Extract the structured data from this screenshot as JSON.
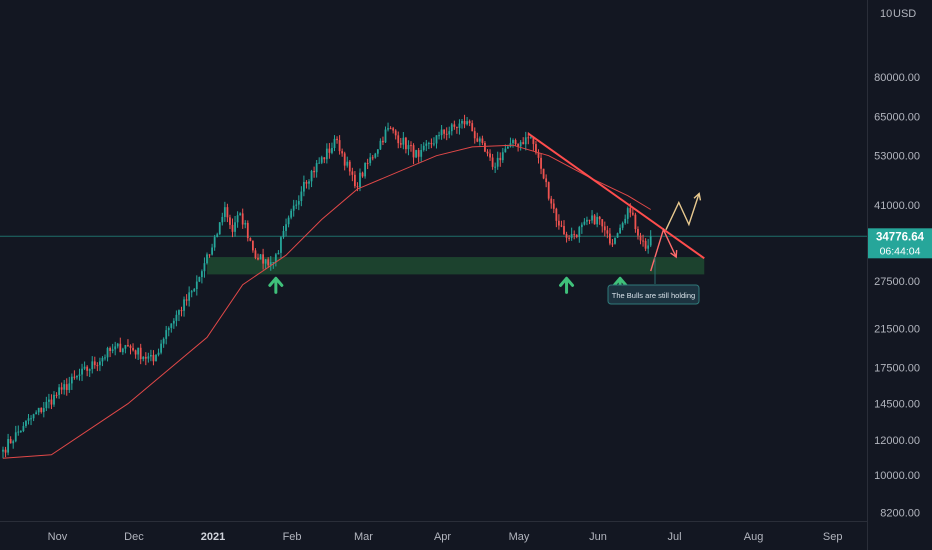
{
  "header": {
    "currency": "USD",
    "scale_label": "10"
  },
  "price_tag": {
    "price": "34776.64",
    "countdown": "06:44:04",
    "color": "#26a69a"
  },
  "annotation": {
    "text": "The Bulls are still holding"
  },
  "colors": {
    "up": "#26a69a",
    "down": "#ef5350",
    "ma": "#e04848",
    "zone": "#1e4a30",
    "trendline": "#ff4d4d",
    "projection_red": "#ff6b6b",
    "projection_yellow": "#e8c98f",
    "arrow": "#3fc07a"
  },
  "chart_data": {
    "type": "candlestick",
    "title": "",
    "xlabel": "",
    "ylabel": "",
    "y_scale": "log",
    "ylim": [
      7000,
      110000
    ],
    "grid": false,
    "x_ticks": [
      "Nov",
      "Dec",
      "2021",
      "Feb",
      "Mar",
      "Apr",
      "May",
      "Jun",
      "Jul",
      "Aug",
      "Sep"
    ],
    "y_ticks": [
      "80000.00",
      "65000.00",
      "53000.00",
      "41000.00",
      "27500.00",
      "21500.00",
      "17500.00",
      "14500.00",
      "12000.00",
      "10000.00",
      "8200.00"
    ],
    "last_price": 34776.64,
    "start_date": "2020-10-13",
    "anchor_closes": [
      [
        "2020-10-13",
        11400
      ],
      [
        "2020-10-21",
        12900
      ],
      [
        "2020-11-05",
        15600
      ],
      [
        "2020-11-24",
        19100
      ],
      [
        "2020-11-30",
        19700
      ],
      [
        "2020-12-11",
        18100
      ],
      [
        "2020-12-16",
        21300
      ],
      [
        "2020-12-27",
        26400
      ],
      [
        "2021-01-03",
        32800
      ],
      [
        "2021-01-08",
        40500
      ],
      [
        "2021-01-11",
        35600
      ],
      [
        "2021-01-14",
        39200
      ],
      [
        "2021-01-21",
        30800
      ],
      [
        "2021-01-27",
        30400
      ],
      [
        "2021-02-08",
        46200
      ],
      [
        "2021-02-21",
        57500
      ],
      [
        "2021-02-28",
        45200
      ],
      [
        "2021-03-13",
        61200
      ],
      [
        "2021-03-25",
        52700
      ],
      [
        "2021-04-02",
        59000
      ],
      [
        "2021-04-13",
        63500
      ],
      [
        "2021-04-23",
        50000
      ],
      [
        "2021-04-28",
        55000
      ],
      [
        "2021-05-08",
        58500
      ],
      [
        "2021-05-12",
        49500
      ],
      [
        "2021-05-19",
        36800
      ],
      [
        "2021-05-23",
        34500
      ],
      [
        "2021-06-03",
        38500
      ],
      [
        "2021-06-08",
        33500
      ],
      [
        "2021-06-15",
        40300
      ],
      [
        "2021-06-22",
        32600
      ],
      [
        "2021-06-24",
        34776
      ]
    ],
    "moving_average": [
      [
        "2020-10-13",
        10900
      ],
      [
        "2020-11-01",
        11100
      ],
      [
        "2020-12-01",
        14500
      ],
      [
        "2021-01-01",
        20500
      ],
      [
        "2021-01-15",
        27000
      ],
      [
        "2021-02-01",
        31500
      ],
      [
        "2021-02-15",
        38000
      ],
      [
        "2021-03-01",
        44500
      ],
      [
        "2021-04-01",
        53000
      ],
      [
        "2021-04-15",
        55500
      ],
      [
        "2021-05-01",
        56000
      ],
      [
        "2021-05-15",
        53000
      ],
      [
        "2021-06-01",
        47000
      ],
      [
        "2021-06-15",
        43000
      ],
      [
        "2021-06-24",
        40000
      ]
    ],
    "support_zone": {
      "from": "2021-01-01",
      "to": "2021-07-15",
      "low": 28500,
      "high": 31200
    },
    "resistance_trendline": [
      [
        "2021-05-07",
        59500
      ],
      [
        "2021-07-15",
        31000
      ]
    ],
    "support_arrows": [
      "2021-01-28",
      "2021-05-22",
      "2021-06-12"
    ],
    "projection_down": [
      [
        "2021-06-24",
        29000
      ],
      [
        "2021-06-29",
        36000
      ],
      [
        "2021-07-04",
        31200
      ]
    ],
    "projection_up": [
      [
        "2021-06-30",
        36000
      ],
      [
        "2021-07-05",
        41500
      ],
      [
        "2021-07-09",
        37000
      ],
      [
        "2021-07-13",
        43500
      ]
    ]
  }
}
